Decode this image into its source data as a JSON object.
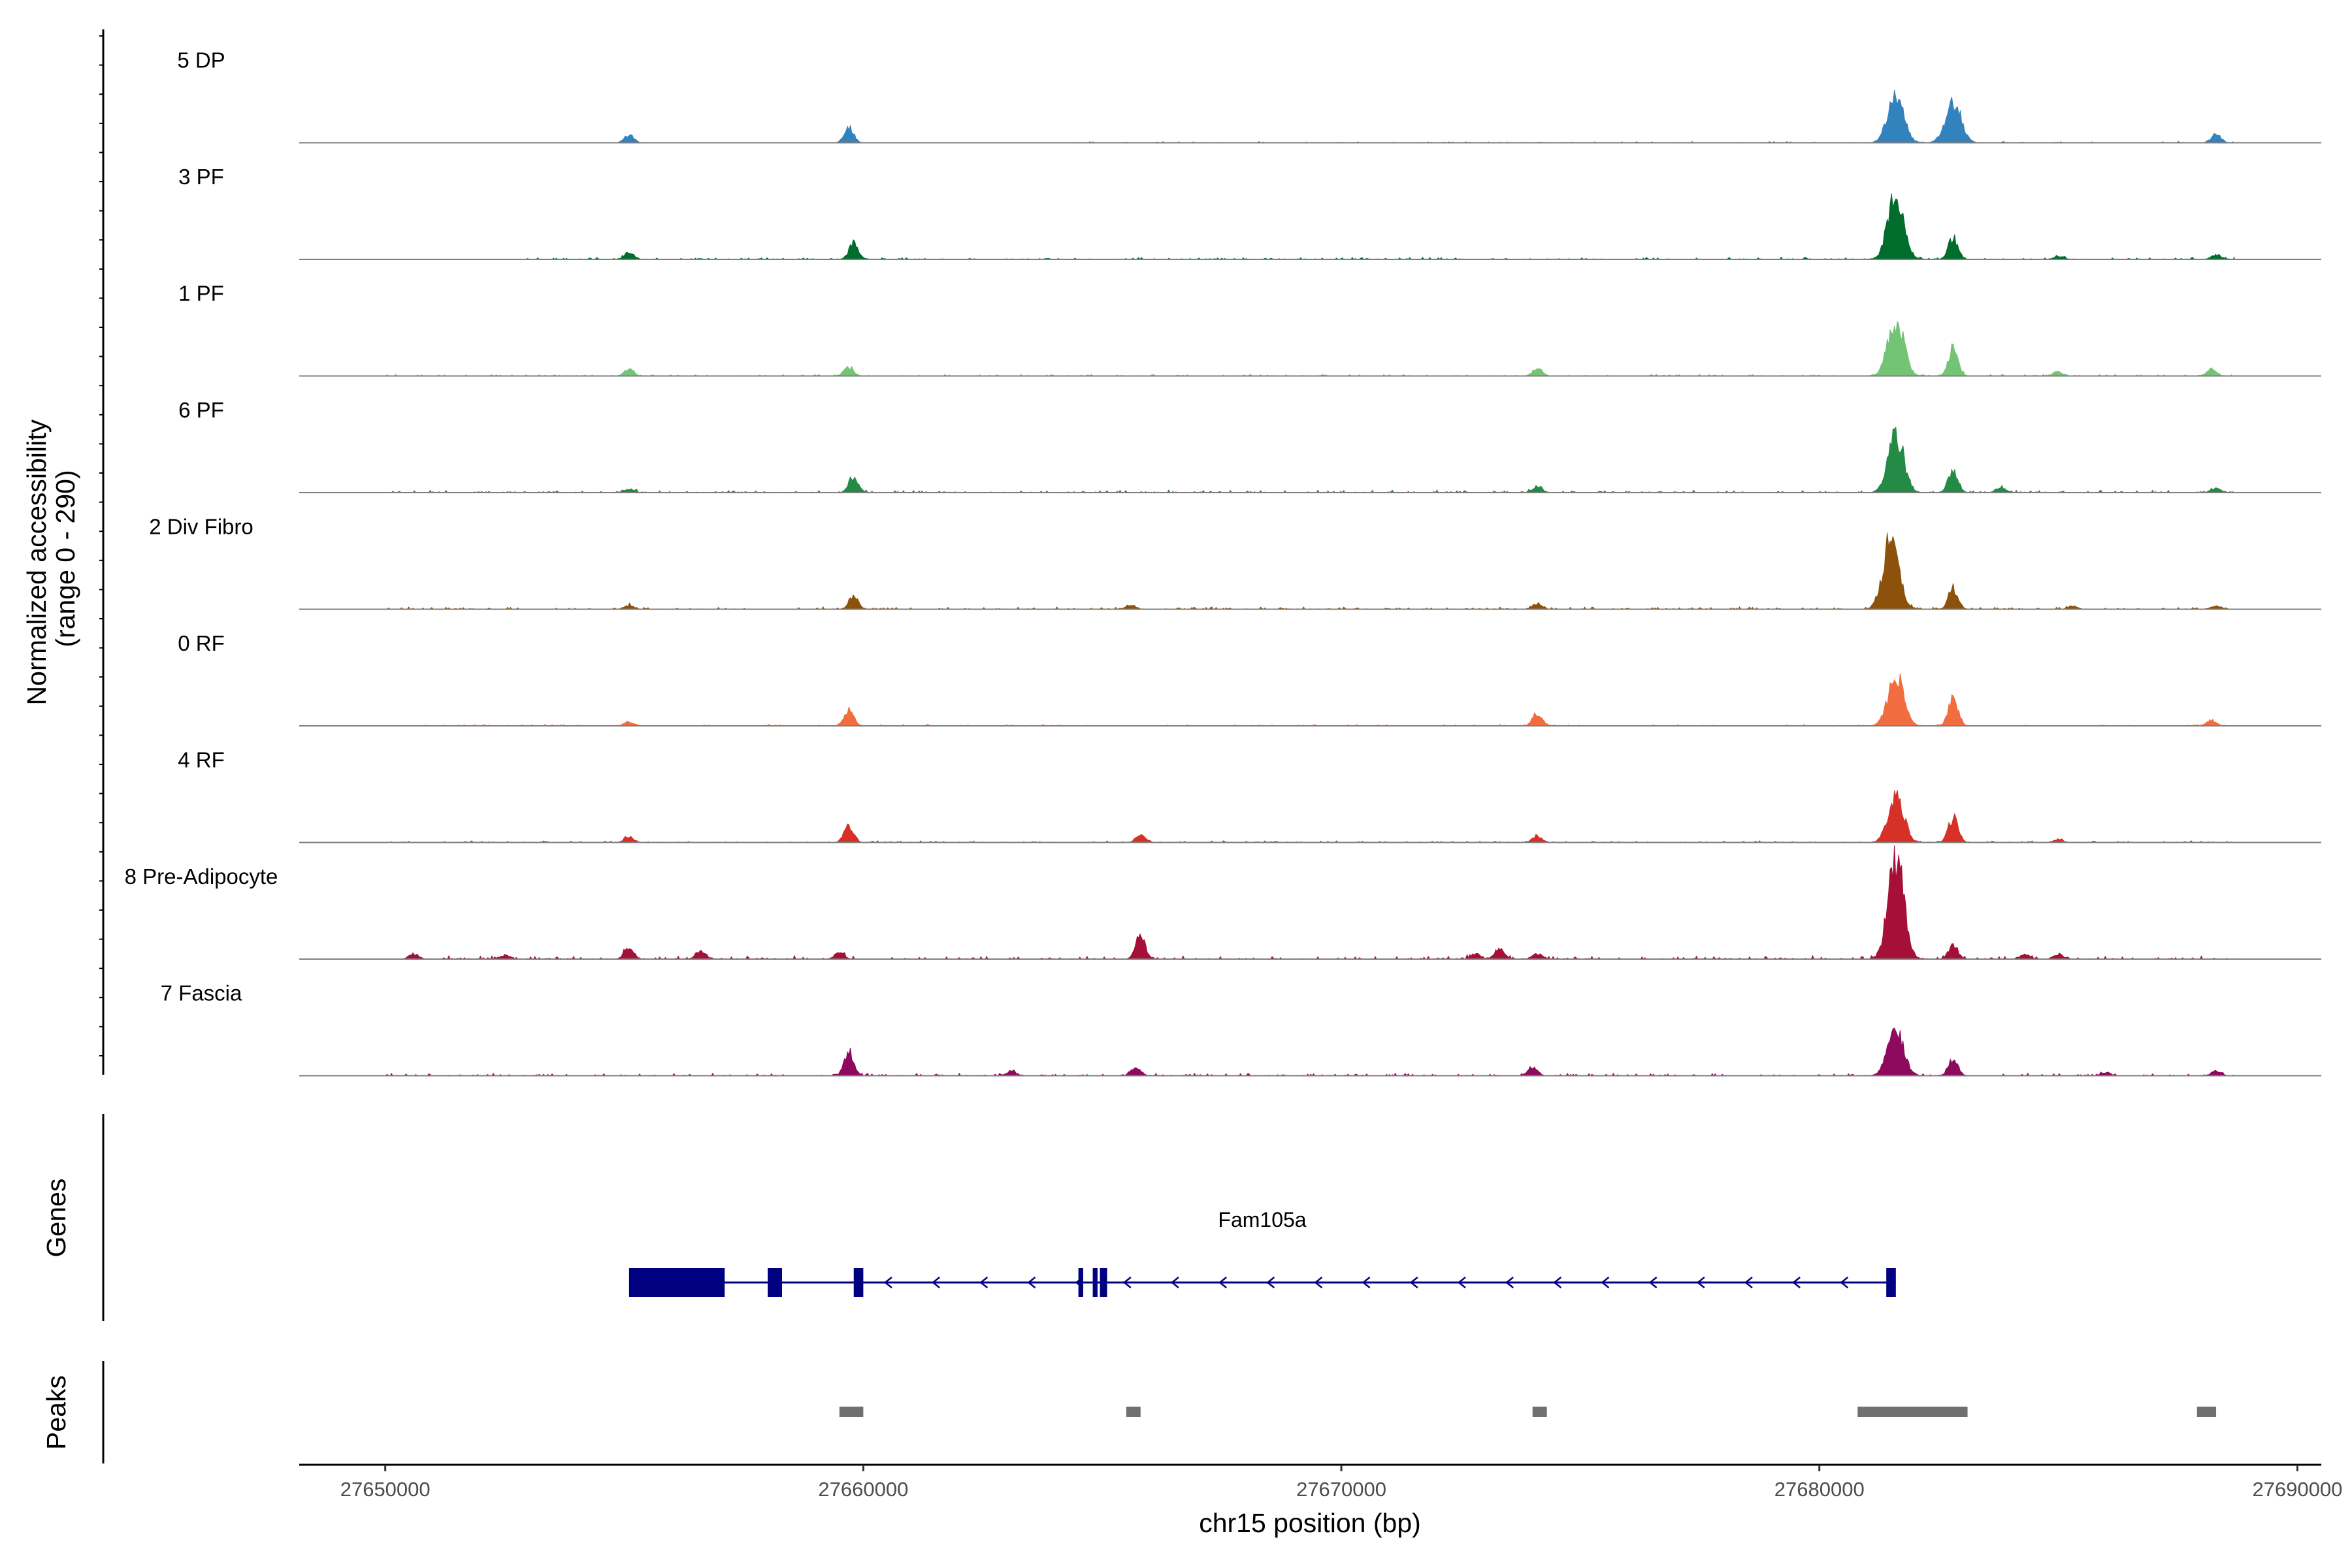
{
  "chart_data": {
    "type": "area",
    "title": "",
    "xlabel": "chr15 position (bp)",
    "ylabel": "Normalized accessibility\n(range 0 - 290)",
    "ylabel_lines": [
      "Normalized accessibility",
      "(range 0 - 290)"
    ],
    "xlim": [
      27648200,
      27690500
    ],
    "ylim": [
      0,
      290
    ],
    "x_ticks": [
      27650000,
      27660000,
      27670000,
      27680000,
      27690000
    ],
    "x_tick_labels": [
      "27650000",
      "27660000",
      "27670000",
      "27680000",
      "27690000"
    ],
    "series": [
      {
        "name": "5 DP",
        "color": "#3182BD",
        "peaks": [
          [
            27655100,
            20
          ],
          [
            27659700,
            38
          ],
          [
            27681600,
            130
          ],
          [
            27682800,
            105
          ],
          [
            27688300,
            22
          ]
        ],
        "noise": 4,
        "noise_from": 27664000
      },
      {
        "name": "3 PF",
        "color": "#006D2C",
        "peaks": [
          [
            27655100,
            18
          ],
          [
            27659800,
            40
          ],
          [
            27681600,
            165
          ],
          [
            27682800,
            55
          ],
          [
            27685000,
            8
          ],
          [
            27688300,
            12
          ]
        ],
        "noise": 6,
        "noise_from": 27652500
      },
      {
        "name": "1 PF",
        "color": "#74C476",
        "peaks": [
          [
            27655100,
            18
          ],
          [
            27659700,
            22
          ],
          [
            27674100,
            20
          ],
          [
            27681600,
            145
          ],
          [
            27682800,
            72
          ],
          [
            27685000,
            10
          ],
          [
            27688200,
            16
          ]
        ],
        "noise": 5,
        "noise_from": 27650000
      },
      {
        "name": "6 PF",
        "color": "#238B45",
        "peaks": [
          [
            27655100,
            10
          ],
          [
            27659800,
            42
          ],
          [
            27674100,
            16
          ],
          [
            27681600,
            150
          ],
          [
            27682800,
            58
          ],
          [
            27683800,
            14
          ],
          [
            27688300,
            12
          ]
        ],
        "noise": 7,
        "noise_from": 27650000
      },
      {
        "name": "2 Div Fibro",
        "color": "#8C510A",
        "peaks": [
          [
            27655100,
            10
          ],
          [
            27659800,
            32
          ],
          [
            27665600,
            12
          ],
          [
            27674100,
            12
          ],
          [
            27681500,
            190
          ],
          [
            27682800,
            55
          ],
          [
            27685300,
            8
          ],
          [
            27688300,
            10
          ]
        ],
        "noise": 7,
        "noise_from": 27650000
      },
      {
        "name": "0 RF",
        "color": "#F16D3F",
        "peaks": [
          [
            27655100,
            10
          ],
          [
            27659700,
            40
          ],
          [
            27674100,
            32
          ],
          [
            27681600,
            130
          ],
          [
            27682800,
            72
          ],
          [
            27688200,
            14
          ]
        ],
        "noise": 4,
        "noise_from": 27650000
      },
      {
        "name": "4 RF",
        "color": "#D73027",
        "peaks": [
          [
            27655100,
            14
          ],
          [
            27659700,
            44
          ],
          [
            27665800,
            20
          ],
          [
            27674100,
            18
          ],
          [
            27681600,
            120
          ],
          [
            27682800,
            65
          ],
          [
            27685000,
            8
          ]
        ],
        "noise": 5,
        "noise_from": 27650000
      },
      {
        "name": "8 Pre-Adipocyte",
        "color": "#A50F38",
        "peaks": [
          [
            27650600,
            14
          ],
          [
            27652500,
            10
          ],
          [
            27655100,
            30
          ],
          [
            27656600,
            20
          ],
          [
            27659500,
            16
          ],
          [
            27665800,
            58
          ],
          [
            27672800,
            14
          ],
          [
            27673300,
            26
          ],
          [
            27674100,
            14
          ],
          [
            27681600,
            262
          ],
          [
            27682800,
            36
          ],
          [
            27684300,
            12
          ],
          [
            27685000,
            12
          ]
        ],
        "noise": 9,
        "noise_from": 27651000
      },
      {
        "name": "7 Fascia",
        "color": "#8E0A5F",
        "peaks": [
          [
            27659700,
            62
          ],
          [
            27663100,
            12
          ],
          [
            27665700,
            22
          ],
          [
            27674000,
            20
          ],
          [
            27681600,
            125
          ],
          [
            27682800,
            45
          ],
          [
            27686000,
            8
          ],
          [
            27688300,
            12
          ]
        ],
        "noise": 7,
        "noise_from": 27650000
      }
    ],
    "genes": [
      {
        "name": "Fam105a",
        "strand": "-",
        "exons": [
          [
            27655100,
            27657100
          ],
          [
            27658000,
            27658300
          ],
          [
            27659800,
            27660000
          ],
          [
            27664500,
            27664600
          ],
          [
            27664800,
            27664900
          ],
          [
            27664950,
            27665100
          ],
          [
            27681400,
            27681600
          ]
        ]
      }
    ],
    "peaks": [
      [
        27659500,
        27660000
      ],
      [
        27665500,
        27665800
      ],
      [
        27674000,
        27674300
      ],
      [
        27680800,
        27683100
      ],
      [
        27687900,
        27688300
      ]
    ],
    "gene_track_label": "Genes",
    "peak_track_label": "Peaks",
    "track_fill_style": "filled area per cell type",
    "gene_color": "#000080",
    "peak_color": "#707070"
  }
}
